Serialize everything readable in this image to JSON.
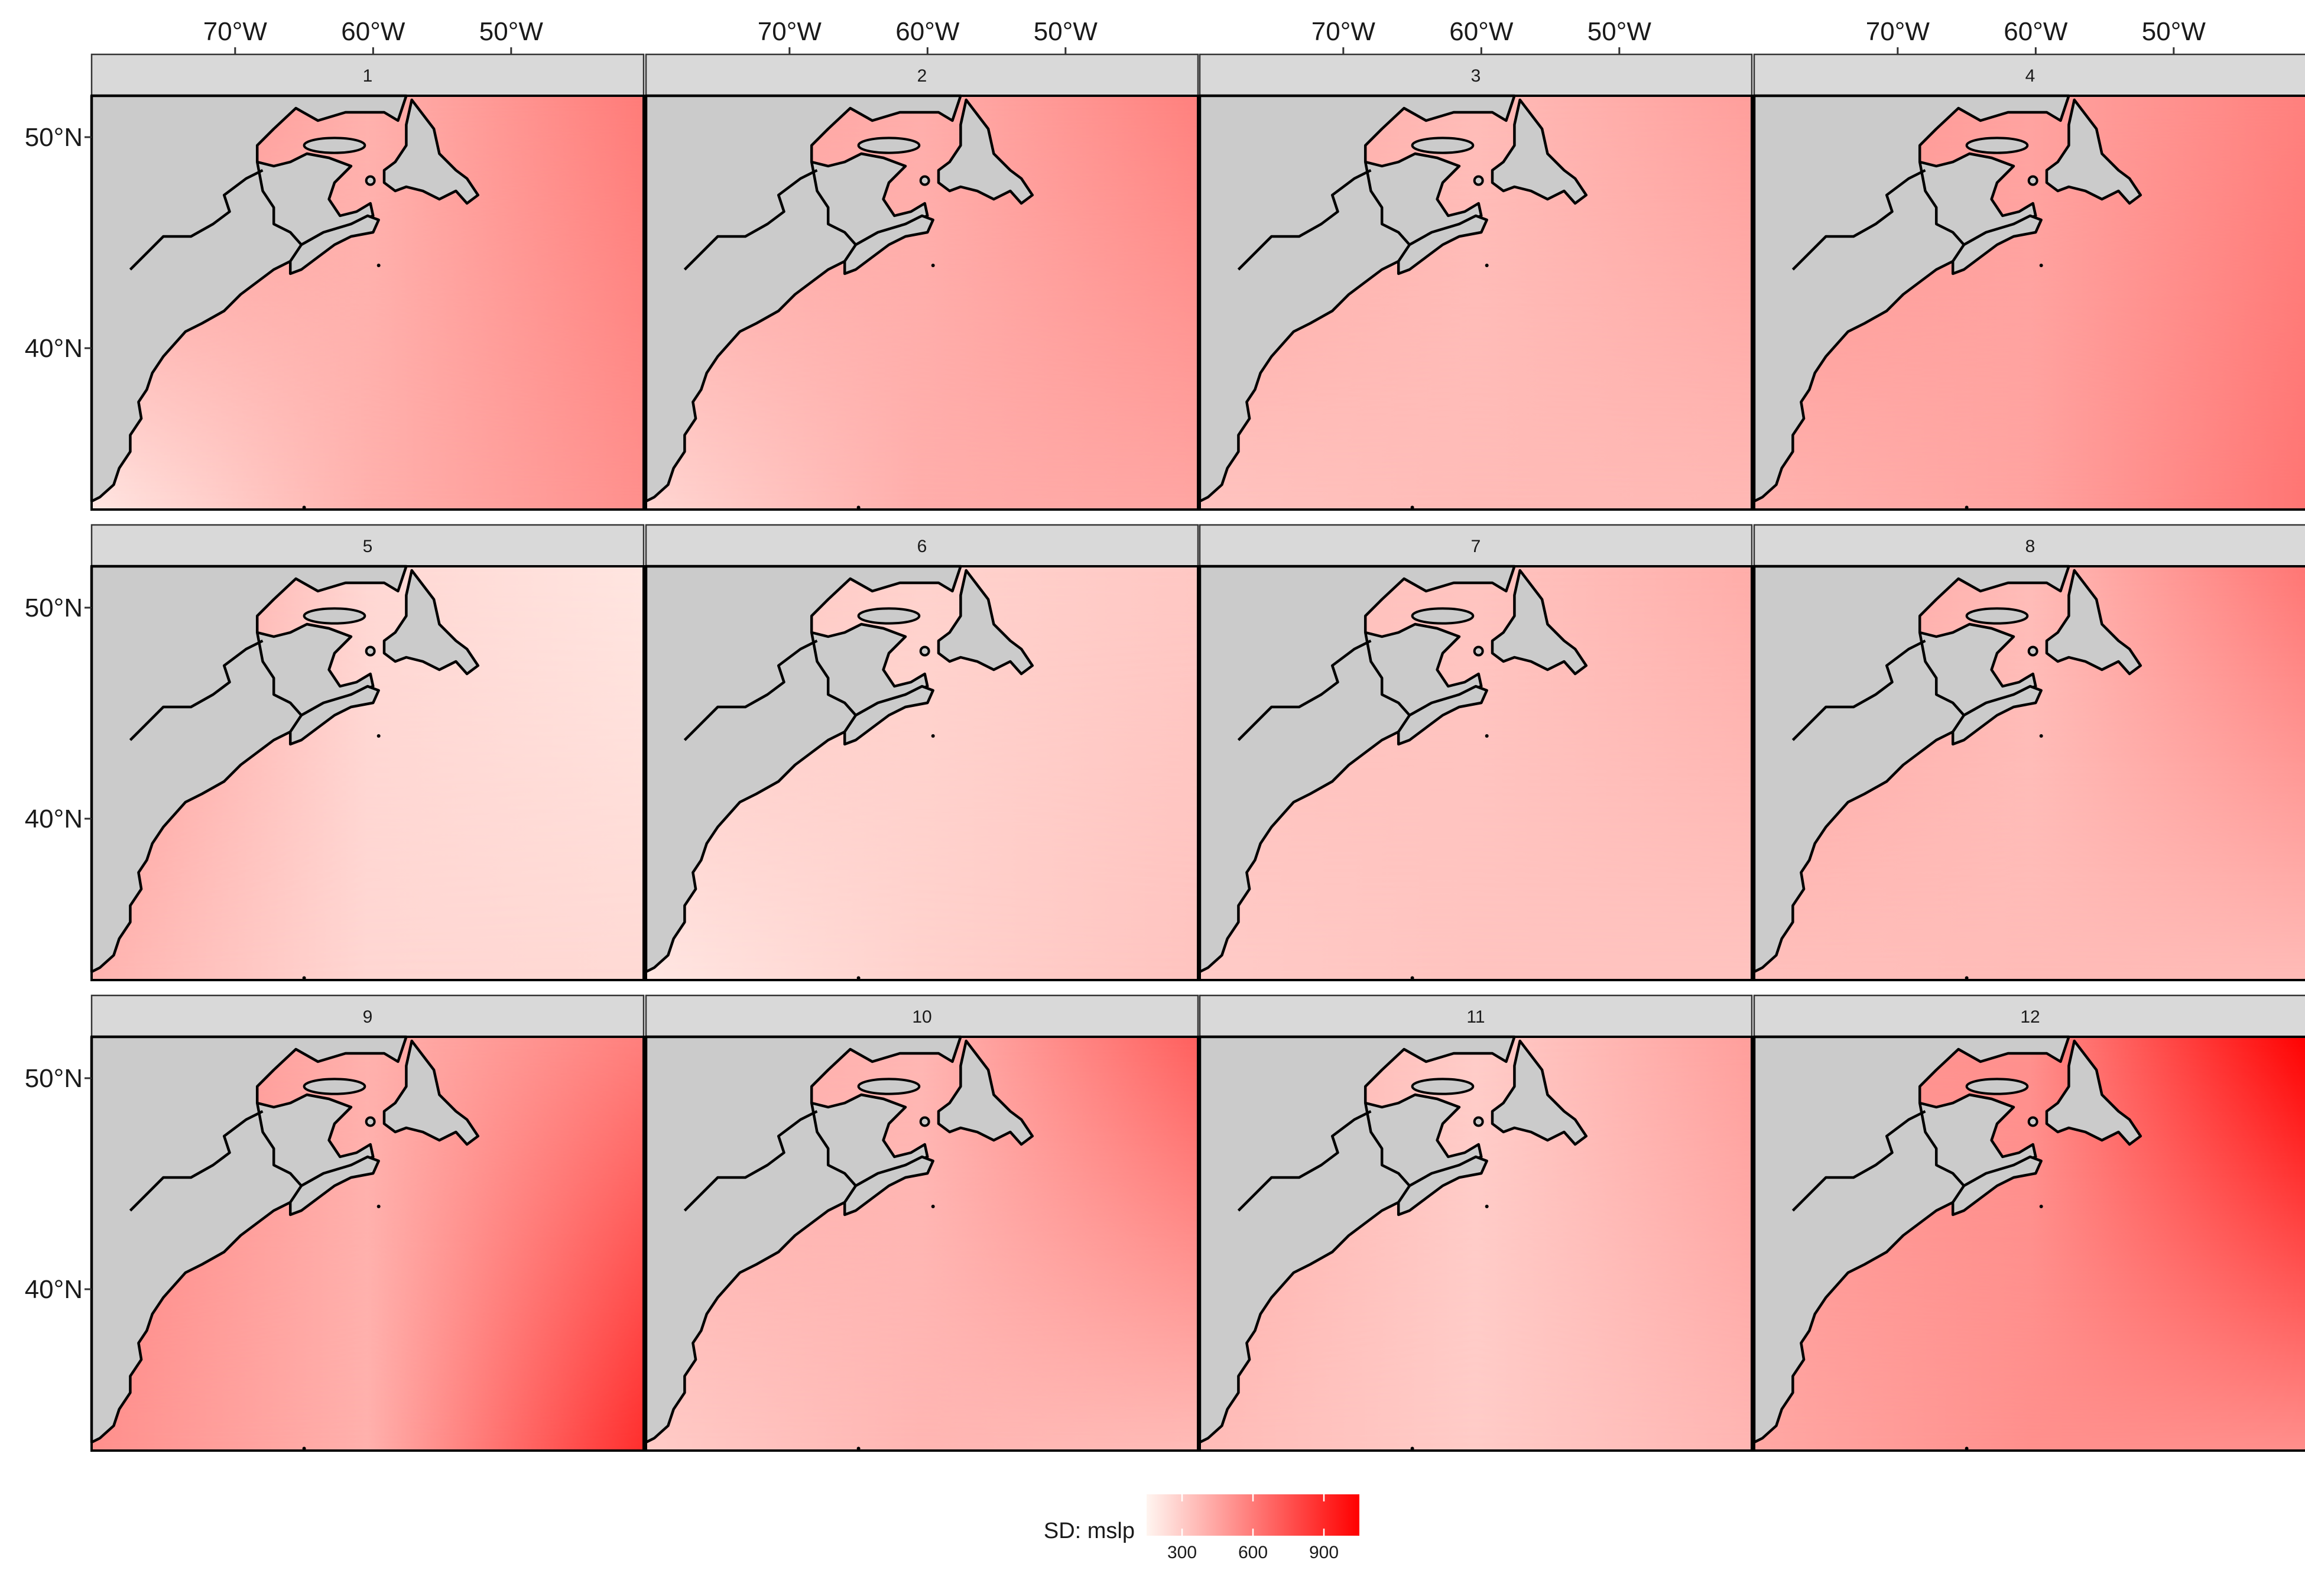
{
  "figure": {
    "legend_title": "SD: mslp",
    "legend_ticks": [
      "300",
      "600",
      "900"
    ],
    "x_axis_labels": [
      "70°W",
      "60°W",
      "50°W"
    ],
    "y_axis_labels": [
      "50°N",
      "40°N"
    ]
  },
  "colors": {
    "scale_low": "#fff5f0",
    "scale_high": "#ff0000",
    "land": "#cbcbcb",
    "strip": "#d9d9d9"
  },
  "chart_data": {
    "type": "heatmap",
    "description": "Standard deviation of mean sea level pressure, faceted by month",
    "facets": [
      "1",
      "2",
      "3",
      "4",
      "5",
      "6",
      "7",
      "8",
      "9",
      "10",
      "11",
      "12"
    ],
    "x_ticks": [
      "70°W",
      "60°W",
      "50°W"
    ],
    "y_ticks": [
      "50°N",
      "40°N"
    ],
    "legend": {
      "title": "SD: mslp",
      "ticks": [
        300,
        600,
        900
      ],
      "range": [
        150,
        1050
      ],
      "placement": "bottom"
    },
    "panels": [
      {
        "label": "1",
        "nw": 560,
        "ne": 600,
        "sw": 200,
        "se": 520,
        "c": 400
      },
      {
        "label": "2",
        "nw": 480,
        "ne": 580,
        "sw": 260,
        "se": 440,
        "c": 410
      },
      {
        "label": "3",
        "nw": 460,
        "ne": 470,
        "sw": 330,
        "se": 370,
        "c": 360
      },
      {
        "label": "4",
        "nw": 520,
        "ne": 580,
        "sw": 390,
        "se": 620,
        "c": 450
      },
      {
        "label": "5",
        "nw": 520,
        "ne": 210,
        "sw": 390,
        "se": 250,
        "c": 260
      },
      {
        "label": "6",
        "nw": 350,
        "ne": 320,
        "sw": 200,
        "se": 330,
        "c": 280
      },
      {
        "label": "7",
        "nw": 360,
        "ne": 420,
        "sw": 300,
        "se": 330,
        "c": 330
      },
      {
        "label": "8",
        "nw": 470,
        "ne": 620,
        "sw": 340,
        "se": 360,
        "c": 360
      },
      {
        "label": "9",
        "nw": 560,
        "ne": 580,
        "sw": 520,
        "se": 880,
        "c": 400
      },
      {
        "label": "10",
        "nw": 440,
        "ne": 700,
        "sw": 300,
        "se": 360,
        "c": 380
      },
      {
        "label": "11",
        "nw": 430,
        "ne": 470,
        "sw": 360,
        "se": 380,
        "c": 300
      },
      {
        "label": "12",
        "nw": 500,
        "ne": 1050,
        "sw": 430,
        "se": 520,
        "c": 520
      }
    ]
  }
}
